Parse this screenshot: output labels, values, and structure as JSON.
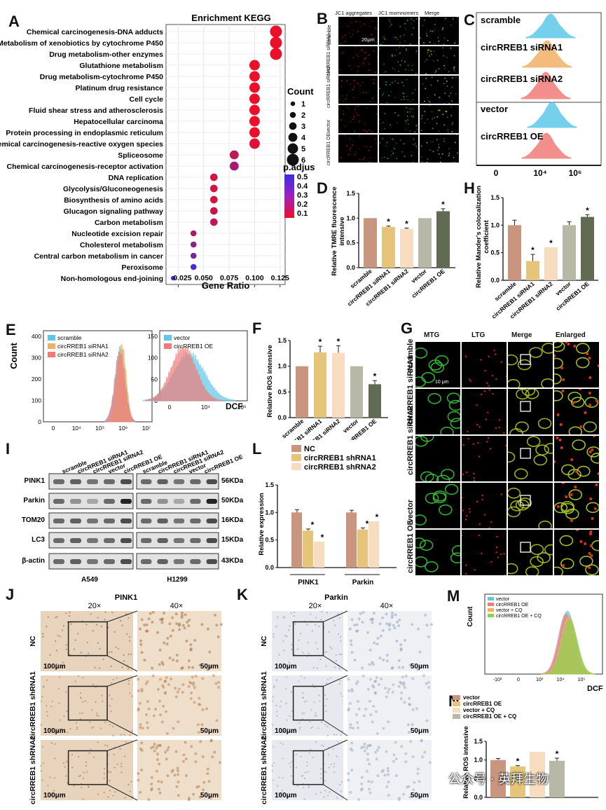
{
  "panel_letters": {
    "A": "A",
    "B": "B",
    "C": "C",
    "D": "D",
    "E": "E",
    "F": "F",
    "G": "G",
    "H": "H",
    "I": "I",
    "J": "J",
    "K": "K",
    "L": "L",
    "M": "M",
    "N": "N"
  },
  "colors": {
    "tan": "#c9957f",
    "lightyellow": "#e6c57a",
    "lightpeach": "#f8dcc0",
    "grayish": "#b8b8a6",
    "darkgreen": "#616b52",
    "blue_hist": "#5ec8e8",
    "orange_hist": "#f2b066",
    "red_hist": "#f07c78",
    "green_hist": "#8dd14f"
  },
  "panelA": {
    "chart_data": {
      "type": "scatter",
      "title": "Enrichment KEGG",
      "xlabel": "Gene Ratio",
      "x_ticks": [
        "0.025",
        "0.050",
        "0.075",
        "0.100",
        "0.125"
      ],
      "xlim": [
        0.013,
        0.13
      ],
      "terms": [
        {
          "name": "Chemical carcinogenesis-DNA adducts",
          "x": 0.121,
          "count": 6,
          "padj": 0.1
        },
        {
          "name": "Metabolism of xenobiotics by cytochrome P450",
          "x": 0.121,
          "count": 6,
          "padj": 0.1
        },
        {
          "name": "Drug metabolism-other enzymes",
          "x": 0.121,
          "count": 6,
          "padj": 0.1
        },
        {
          "name": "Glutathione metabolism",
          "x": 0.1,
          "count": 5,
          "padj": 0.1
        },
        {
          "name": "Drug metabolism-cytochrome P450",
          "x": 0.1,
          "count": 5,
          "padj": 0.1
        },
        {
          "name": "Platinum drug resistance",
          "x": 0.1,
          "count": 5,
          "padj": 0.1
        },
        {
          "name": "Cell cycle",
          "x": 0.1,
          "count": 5,
          "padj": 0.1
        },
        {
          "name": "Fluid shear stress and atherosclerosis",
          "x": 0.1,
          "count": 5,
          "padj": 0.1
        },
        {
          "name": "Hepatocellular carcinoma",
          "x": 0.1,
          "count": 5,
          "padj": 0.1
        },
        {
          "name": "Protein processing in endoplasmic reticulum",
          "x": 0.1,
          "count": 5,
          "padj": 0.1
        },
        {
          "name": "Chemical carcinogenesis-reactive oxygen species",
          "x": 0.1,
          "count": 5,
          "padj": 0.12
        },
        {
          "name": "Spliceosome",
          "x": 0.08,
          "count": 4,
          "padj": 0.2
        },
        {
          "name": "Chemical carcinogenesis-receptor activation",
          "x": 0.08,
          "count": 4,
          "padj": 0.25
        },
        {
          "name": "DNA replication",
          "x": 0.06,
          "count": 3,
          "padj": 0.15
        },
        {
          "name": "Glycolysis/Gluconeogenesis",
          "x": 0.06,
          "count": 3,
          "padj": 0.15
        },
        {
          "name": "Biosynthesis of amino acids",
          "x": 0.06,
          "count": 3,
          "padj": 0.15
        },
        {
          "name": "Glucagon signaling pathway",
          "x": 0.06,
          "count": 3,
          "padj": 0.18
        },
        {
          "name": "Carbon metabolism",
          "x": 0.06,
          "count": 3,
          "padj": 0.2
        },
        {
          "name": "Nucleotide excision repair",
          "x": 0.04,
          "count": 2,
          "padj": 0.25
        },
        {
          "name": "Cholesterol metabolism",
          "x": 0.04,
          "count": 2,
          "padj": 0.3
        },
        {
          "name": "Central carbon metabolism in cancer",
          "x": 0.04,
          "count": 2,
          "padj": 0.35
        },
        {
          "name": "Peroxisome",
          "x": 0.04,
          "count": 2,
          "padj": 0.45
        },
        {
          "name": "Non-homologous end-joining",
          "x": 0.02,
          "count": 1,
          "padj": 0.5
        }
      ],
      "legend_count_title": "Count",
      "legend_counts": [
        "1",
        "2",
        "3",
        "4",
        "5",
        "6"
      ],
      "legend_padj_title": "p.adjust",
      "legend_padj": [
        "0.5",
        "0.4",
        "0.3",
        "0.2",
        "0.1"
      ]
    }
  },
  "panelB": {
    "cols": [
      "JC1 aggregates",
      "JC1 momnomers",
      "Merge"
    ],
    "rows": [
      "scramble",
      "circRREB1 siRNA1",
      "circRREB1 siRNA2",
      "vector",
      "circRREB1 OE"
    ],
    "scale": "20μm"
  },
  "panelC": {
    "labels": [
      "scramble",
      "circRREB1 siRNA1",
      "circRREB1 siRNA2",
      "vector",
      "circRREB1 OE"
    ],
    "x_ticks": [
      "0",
      "10⁴",
      "10⁶"
    ]
  },
  "panelD": {
    "chart_data": {
      "type": "bar",
      "ylabel": "Relative TMRE fluorescence intensive",
      "categories": [
        "scramble",
        "circRREB1 siRNA1",
        "circRREB1 siRNA2",
        "vector",
        "circRREB1 OE"
      ],
      "values": [
        1.0,
        0.82,
        0.78,
        1.0,
        1.14
      ],
      "errors": [
        0,
        0.02,
        0.02,
        0,
        0.05
      ],
      "sig": [
        "",
        "*",
        "*",
        "",
        "*"
      ],
      "ylim": [
        0,
        1.5
      ],
      "y_ticks": [
        "0.0",
        "0.5",
        "1.0",
        "1.5"
      ]
    }
  },
  "panelH": {
    "chart_data": {
      "type": "bar",
      "ylabel": "Relative Mander's colocalization coefficient",
      "categories": [
        "scramble",
        "circRREB1 siRNA1",
        "circRREB1 siRNA2",
        "vector",
        "circRREB1 OE"
      ],
      "values": [
        1.0,
        0.35,
        0.6,
        1.0,
        1.15
      ],
      "errors": [
        0.09,
        0.12,
        0.0,
        0.06,
        0.04
      ],
      "sig": [
        "",
        "*",
        "*",
        "",
        "*"
      ],
      "ylim": [
        0,
        1.5
      ],
      "y_ticks": [
        "0.0",
        "0.5",
        "1.0",
        "1.5"
      ]
    }
  },
  "panelE": {
    "ylabel": "Count",
    "xlabel": "DCF",
    "left_legend": [
      "scramble",
      "circRREB1 siRNA1",
      "circRREB1 siRNA2"
    ],
    "right_legend": [
      "vector",
      "circRREB1 OE"
    ],
    "left_y_ticks": [
      "0",
      "100",
      "200",
      "300",
      "400"
    ],
    "right_y_ticks": [
      "0",
      "50",
      "100",
      "150"
    ],
    "left_x_ticks": [
      "0",
      "10⁴",
      "10⁵",
      "10⁶",
      "10⁷"
    ],
    "right_x_ticks": [
      "0",
      "10⁴",
      "10⁵"
    ]
  },
  "panelF": {
    "chart_data": {
      "type": "bar",
      "ylabel": "Relative ROS intensive",
      "categories": [
        "scramble",
        "circRREB1 siRNA1",
        "circRREB1 siRNA2",
        "vector",
        "circRREB1 OE"
      ],
      "values": [
        1.0,
        1.27,
        1.26,
        1.0,
        0.65
      ],
      "errors": [
        0,
        0.12,
        0.14,
        0,
        0.07
      ],
      "sig": [
        "",
        "*",
        "*",
        "",
        "*"
      ],
      "ylim": [
        0,
        1.5
      ],
      "y_ticks": [
        "0.0",
        "0.5",
        "1.0",
        "1.5"
      ]
    }
  },
  "panelG": {
    "cols": [
      "MTG",
      "LTG",
      "Merge",
      "Enlarged"
    ],
    "rows": [
      "scramble",
      "circRREB1 siRNA1",
      "circRREB1 siRNA2",
      "vector",
      "circRREB1 OE"
    ],
    "scale": "10 μm"
  },
  "panelI": {
    "lanes": [
      "scramble",
      "circRREB1 siRNA1",
      "circRREB1 siRNA2",
      "vector",
      "circRREB1 OE"
    ],
    "proteins": [
      "PINK1",
      "Parkin",
      "TOM20",
      "LC3",
      "β-actin"
    ],
    "sizes": [
      "56KDa",
      "50KDa",
      "16KDa",
      "15KDa",
      "43KDa"
    ],
    "cells": [
      "A549",
      "H1299"
    ]
  },
  "panelL": {
    "chart_data": {
      "type": "bar",
      "ylabel": "Relative expression",
      "categories": [
        "PINK1",
        "Parkin"
      ],
      "series": [
        {
          "name": "NC",
          "values": [
            1.0,
            1.0
          ],
          "errors": [
            0.05,
            0.04
          ]
        },
        {
          "name": "circRREB1 shRNA1",
          "values": [
            0.67,
            0.69
          ],
          "errors": [
            0.03,
            0.03
          ]
        },
        {
          "name": "circRREB1 shRNA2",
          "values": [
            0.47,
            0.84
          ],
          "errors": [
            0,
            0
          ]
        }
      ],
      "sig": [
        [
          "",
          "*",
          "*"
        ],
        [
          "",
          "*",
          "*"
        ]
      ],
      "ylim": [
        0,
        1.5
      ],
      "y_ticks": [
        "0.0",
        "0.5",
        "1.0",
        "1.5"
      ]
    }
  },
  "panelJ": {
    "title": "PINK1",
    "mag": [
      "20×",
      "40×"
    ],
    "rows": [
      "NC",
      "circRREB1 shRNA1",
      "circRREB1 shRNA2"
    ],
    "scale_left": "100μm",
    "scale_right": "50μm"
  },
  "panelK": {
    "title": "Parkin",
    "mag": [
      "20×",
      "40×"
    ],
    "rows": [
      "NC",
      "circRREB1 shRNA1",
      "circRREB1 shRNA2"
    ],
    "scale_left": "100μm",
    "scale_right": "50μm"
  },
  "panelM": {
    "ylabel": "Count",
    "xlabel": "DCF",
    "legend": [
      "vector",
      "circRREB1 OE",
      "vector + CQ",
      "circRREB1 OE + CQ"
    ],
    "x_ticks": [
      "-10³",
      "0",
      "10³",
      "10⁴",
      "10⁵"
    ]
  },
  "panelN": {
    "chart_data": {
      "type": "bar",
      "ylabel": "Relative ROS intensive",
      "legend": [
        "vector",
        "circRREB1 OE",
        "vector + CQ",
        "circRREB1 OE + CQ"
      ],
      "categories": [
        "vector",
        "circRREB1 OE",
        "vector + CQ",
        "circRREB1 OE + CQ"
      ],
      "values": [
        1.0,
        0.83,
        1.22,
        0.98
      ],
      "errors": [
        0.04,
        0.02,
        0,
        0.07
      ],
      "sig": [
        "",
        "*",
        "",
        "*"
      ],
      "ylim": [
        0,
        1.5
      ],
      "y_ticks": [
        "0.0",
        "0.5",
        "1.0",
        "1.5"
      ]
    }
  },
  "watermark": "公众号 · 英拜生物"
}
